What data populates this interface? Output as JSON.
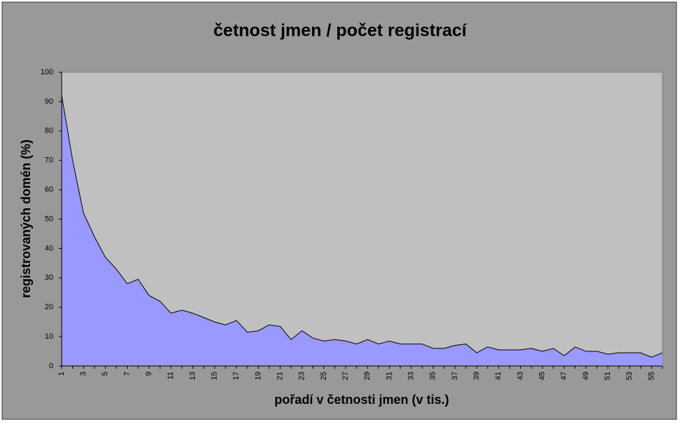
{
  "chart_data": {
    "type": "area",
    "title": "četnost jmen / počet registrací",
    "x_label": "pořadí v četnosti jmen (v tis.)",
    "y_label": "registrovaných domén (%)",
    "categories": [
      1,
      null,
      3,
      null,
      5,
      null,
      7,
      null,
      9,
      null,
      11,
      null,
      13,
      null,
      15,
      null,
      17,
      null,
      19,
      null,
      21,
      null,
      23,
      null,
      25,
      null,
      27,
      null,
      29,
      null,
      31,
      null,
      33,
      null,
      35,
      null,
      37,
      null,
      39,
      null,
      41,
      null,
      43,
      null,
      45,
      null,
      47,
      null,
      49,
      null,
      51,
      null,
      53,
      null,
      55,
      null
    ],
    "series": [
      {
        "color": "#9999ff",
        "values": [
          92,
          70,
          52,
          44,
          37,
          33,
          28,
          29.5,
          24,
          22,
          18,
          19,
          18,
          16.5,
          15,
          14,
          15.5,
          11.5,
          12,
          14,
          13.5,
          9,
          12,
          9.5,
          8.5,
          9,
          8.5,
          7.5,
          9,
          7.5,
          8.5,
          7.5,
          7.5,
          7.5,
          6,
          6,
          7,
          7.5,
          4.5,
          6.5,
          5.5,
          5.5,
          5.5,
          6,
          5,
          6,
          3.5,
          6.5,
          5,
          5,
          4,
          4.5,
          4.5,
          4.5,
          3,
          4.5
        ]
      }
    ],
    "ylim": [
      0,
      100
    ],
    "yticks": [
      0,
      10,
      20,
      30,
      40,
      50,
      60,
      70,
      80,
      90,
      100
    ],
    "grid": false
  }
}
